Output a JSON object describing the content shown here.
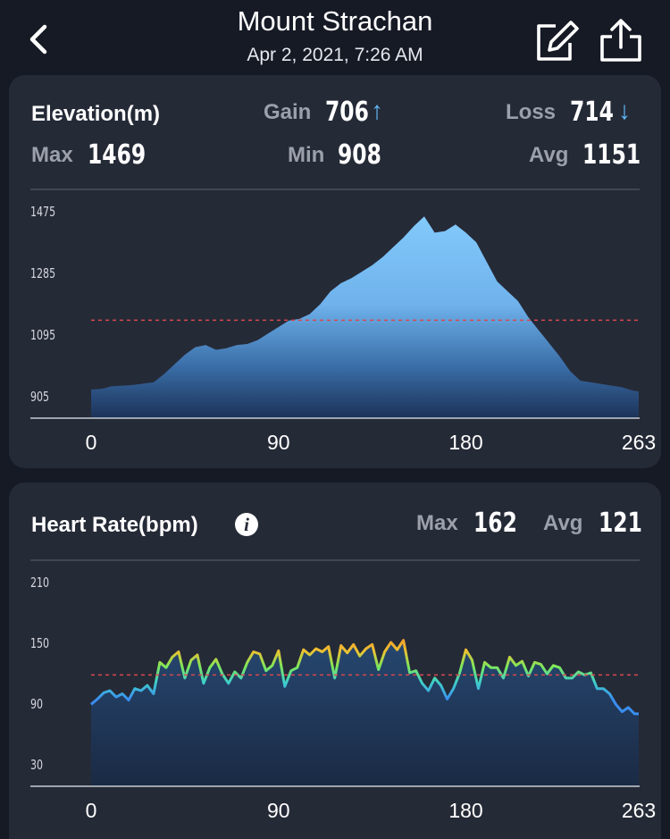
{
  "header": {
    "title": "Mount Strachan",
    "subtitle": "Apr 2, 2021, 7:26 AM",
    "back_icon": "chevron-left-icon",
    "edit_icon": "edit-icon",
    "share_icon": "share-icon"
  },
  "elevation": {
    "title": "Elevation(m)",
    "gain_label": "Gain",
    "gain_value": "706",
    "gain_arrow": "↑",
    "loss_label": "Loss",
    "loss_value": "714",
    "loss_arrow": "↓",
    "max_label": "Max",
    "max_value": "1469",
    "min_label": "Min",
    "min_value": "908",
    "avg_label": "Avg",
    "avg_value": "1151"
  },
  "heart_rate": {
    "title": "Heart Rate(bpm)",
    "info_icon": "info-icon",
    "info_glyph": "i",
    "max_label": "Max",
    "max_value": "162",
    "avg_label": "Avg",
    "avg_value": "121"
  },
  "chart_data": [
    {
      "type": "area",
      "title": "Elevation(m)",
      "xlabel": "",
      "ylabel": "",
      "xlim": [
        0,
        263
      ],
      "ylim": [
        850,
        1520
      ],
      "y_ticks": [
        "1475",
        "1285",
        "1095",
        "905"
      ],
      "x_ticks": [
        "0",
        "90",
        "180",
        "263"
      ],
      "average": 1151,
      "color": "#7fc8fb",
      "x": [
        0,
        5,
        10,
        15,
        20,
        25,
        30,
        35,
        40,
        45,
        50,
        55,
        60,
        65,
        70,
        75,
        80,
        85,
        90,
        95,
        100,
        105,
        110,
        115,
        120,
        125,
        130,
        135,
        140,
        145,
        150,
        155,
        160,
        165,
        170,
        175,
        180,
        185,
        190,
        195,
        200,
        205,
        210,
        215,
        220,
        225,
        230,
        235,
        240,
        245,
        250,
        255,
        260,
        263
      ],
      "y": [
        938,
        940,
        948,
        950,
        952,
        956,
        960,
        985,
        1015,
        1045,
        1068,
        1075,
        1060,
        1065,
        1075,
        1078,
        1090,
        1110,
        1130,
        1150,
        1155,
        1170,
        1200,
        1240,
        1265,
        1280,
        1300,
        1320,
        1345,
        1375,
        1405,
        1440,
        1470,
        1420,
        1425,
        1445,
        1420,
        1390,
        1330,
        1270,
        1240,
        1210,
        1160,
        1120,
        1080,
        1040,
        995,
        965,
        960,
        955,
        950,
        945,
        935,
        932
      ]
    },
    {
      "type": "line",
      "title": "Heart Rate(bpm)",
      "xlabel": "",
      "ylabel": "",
      "xlim": [
        0,
        263
      ],
      "ylim": [
        15,
        220
      ],
      "y_ticks": [
        "210",
        "150",
        "90",
        "30"
      ],
      "x_ticks": [
        "0",
        "90",
        "180",
        "263"
      ],
      "average": 121,
      "colors": [
        "#3a8ef0",
        "#3fd0c8",
        "#7ee85a",
        "#f0c030",
        "#f08c28"
      ],
      "x": [
        0,
        3,
        6,
        9,
        12,
        15,
        18,
        21,
        24,
        27,
        30,
        33,
        36,
        39,
        42,
        45,
        48,
        51,
        54,
        57,
        60,
        63,
        66,
        69,
        72,
        75,
        78,
        81,
        84,
        87,
        90,
        93,
        96,
        99,
        102,
        105,
        108,
        111,
        114,
        117,
        120,
        123,
        126,
        129,
        132,
        135,
        138,
        141,
        144,
        147,
        150,
        153,
        156,
        159,
        162,
        165,
        168,
        171,
        174,
        177,
        180,
        183,
        186,
        189,
        192,
        195,
        198,
        201,
        204,
        207,
        210,
        213,
        216,
        219,
        222,
        225,
        228,
        231,
        234,
        237,
        240,
        243,
        246,
        249,
        252,
        255,
        258,
        261,
        263
      ],
      "y": [
        93,
        98,
        104,
        106,
        100,
        103,
        97,
        108,
        106,
        111,
        103,
        133,
        128,
        138,
        143,
        118,
        135,
        140,
        113,
        128,
        136,
        122,
        113,
        124,
        118,
        133,
        143,
        141,
        125,
        130,
        144,
        110,
        125,
        128,
        145,
        140,
        146,
        143,
        148,
        118,
        149,
        142,
        150,
        139,
        146,
        150,
        126,
        143,
        152,
        145,
        154,
        123,
        125,
        113,
        106,
        118,
        111,
        98,
        108,
        123,
        145,
        135,
        108,
        133,
        128,
        128,
        118,
        138,
        130,
        134,
        120,
        133,
        131,
        122,
        130,
        128,
        118,
        118,
        124,
        121,
        123,
        108,
        108,
        103,
        93,
        86,
        90,
        84,
        84
      ]
    }
  ]
}
